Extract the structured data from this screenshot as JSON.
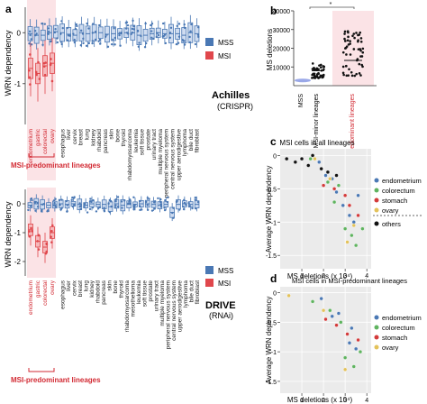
{
  "colors": {
    "mss": "#4a78b4",
    "msi": "#e0474c",
    "msi_bg": "#fbe3e6",
    "panel_bg": "#ebebeb",
    "red_text": "#d22a33",
    "black": "#111111",
    "mss_violin": "#9aa8e8"
  },
  "panel_letters": [
    "a",
    "b",
    "c",
    "d"
  ],
  "panel_a": {
    "ylabel": "WRN dependency",
    "yticks": [
      "0",
      "-1",
      "-2"
    ],
    "msi_group_label": "MSI-predominant lineages",
    "legend": [
      "MSS",
      "MSI"
    ],
    "tag": "Achilles",
    "tag_sub": "(CRISPR)",
    "msi_lineages": [
      "endometrium",
      "gastric",
      "colorectal",
      "ovary"
    ],
    "other_lineages": [
      "esophagus",
      "liver",
      "cervix",
      "breast",
      "lung",
      "kidney",
      "rhabdoid",
      "pancreas",
      "skin",
      "bone",
      "thyroid",
      "rhabdomyosarcoma",
      "leukemia",
      "soft tissue",
      "prostate",
      "urinary tract",
      "multiple myeloma",
      "peripheral nervous system",
      "central nervous system",
      "upper aerodigestive",
      "lymphoma",
      "bile duct",
      "fibroblast"
    ],
    "chart_data": {
      "type": "box",
      "ylim": [
        -1.8,
        0.5
      ],
      "mss_medians": [
        -0.02,
        -0.05,
        -0.05,
        0.0,
        0.02,
        0.0,
        -0.03,
        -0.05,
        0.0,
        -0.02,
        0.0,
        0.0,
        -0.03,
        -0.02,
        -0.02,
        0.0,
        0.0,
        -0.05,
        -0.05,
        -0.02,
        0.0,
        -0.02,
        -0.02,
        -0.02,
        -0.05,
        0.0,
        -0.02
      ],
      "msi_medians": [
        -0.7,
        -0.8,
        -0.65,
        -0.6
      ]
    }
  },
  "panel_b": {
    "ylabel": "MS deletions",
    "yticks": [
      "40000",
      "30000",
      "20000",
      "10000",
      "0"
    ],
    "xticklabels": [
      "MSS",
      "MSI-minor lineages",
      "MSI-predominant lineages"
    ],
    "sig": "*",
    "chart_data": {
      "type": "violin",
      "ylim": [
        0,
        40000
      ],
      "categories": [
        "MSS",
        "MSI-minor lineages",
        "MSI-predominant lineages"
      ],
      "approx_medians": [
        2800,
        8000,
        13500
      ],
      "approx_max": [
        3500,
        17000,
        30000
      ]
    }
  },
  "panel_c": {
    "title": "MSI cells in all lineages",
    "xlabel": "MS deletions (x 10⁴)",
    "ylabel": "Average WRN dependency",
    "xticks": [
      "1",
      "2",
      "3",
      "4"
    ],
    "yticks": [
      "0",
      "-0.5",
      "-1",
      "-1.5"
    ],
    "legend": [
      "endometrium",
      "colorectum",
      "stomach",
      "ovary",
      "others"
    ],
    "chart_data": {
      "type": "scatter",
      "xlim": [
        0,
        4.2
      ],
      "ylim": [
        -1.7,
        0.1
      ],
      "series": [
        {
          "name": "endometrium",
          "points": [
            [
              1.8,
              -0.1
            ],
            [
              2.1,
              -0.3
            ],
            [
              2.4,
              -0.35
            ],
            [
              2.6,
              -0.55
            ],
            [
              3.2,
              -0.9
            ],
            [
              3.4,
              -1.0
            ],
            [
              3.6,
              -0.6
            ],
            [
              2.9,
              -0.75
            ]
          ]
        },
        {
          "name": "colorectum",
          "points": [
            [
              1.4,
              -0.05
            ],
            [
              2.2,
              -0.4
            ],
            [
              2.7,
              -0.45
            ],
            [
              3.0,
              -1.1
            ],
            [
              3.3,
              -1.2
            ],
            [
              3.5,
              -1.35
            ],
            [
              2.5,
              -0.7
            ],
            [
              3.8,
              -1.1
            ]
          ]
        },
        {
          "name": "stomach",
          "points": [
            [
              2.0,
              -0.45
            ],
            [
              2.5,
              -0.5
            ],
            [
              3.0,
              -0.6
            ],
            [
              3.2,
              -0.75
            ],
            [
              3.6,
              -0.9
            ]
          ]
        },
        {
          "name": "ovary",
          "points": [
            [
              1.6,
              -0.05
            ],
            [
              2.3,
              -0.35
            ],
            [
              3.1,
              -1.3
            ],
            [
              3.4,
              -1.05
            ]
          ]
        },
        {
          "name": "others",
          "points": [
            [
              0.3,
              -0.05
            ],
            [
              0.7,
              -0.1
            ],
            [
              1.0,
              -0.05
            ],
            [
              1.3,
              -0.15
            ],
            [
              1.5,
              0.0
            ],
            [
              1.9,
              -0.2
            ],
            [
              2.2,
              -0.25
            ],
            [
              2.6,
              -0.3
            ]
          ]
        }
      ]
    }
  },
  "panel_d": {
    "title": "MSI cells in MSI-predominant lineages",
    "xlabel": "MS deletions (x 10⁴)",
    "ylabel": "Average WRN dependency",
    "xticks": [
      "1",
      "2",
      "3",
      "4"
    ],
    "yticks": [
      "0",
      "-0.5",
      "-1",
      "-1.5"
    ],
    "legend": [
      "endometrium",
      "colorectum",
      "stomach",
      "ovary"
    ],
    "chart_data": {
      "type": "scatter",
      "xlim": [
        0,
        4.2
      ],
      "ylim": [
        -1.7,
        0.1
      ],
      "series": [
        {
          "name": "endometrium",
          "points": [
            [
              1.9,
              -0.1
            ],
            [
              2.4,
              -0.4
            ],
            [
              2.7,
              -0.35
            ],
            [
              3.2,
              -0.85
            ],
            [
              3.5,
              -0.95
            ],
            [
              3.3,
              -0.6
            ]
          ]
        },
        {
          "name": "colorectum",
          "points": [
            [
              1.5,
              -0.15
            ],
            [
              2.3,
              -0.3
            ],
            [
              2.8,
              -0.5
            ],
            [
              3.0,
              -1.1
            ],
            [
              3.4,
              -1.25
            ],
            [
              3.7,
              -1.0
            ]
          ]
        },
        {
          "name": "stomach",
          "points": [
            [
              2.1,
              -0.45
            ],
            [
              2.6,
              -0.55
            ],
            [
              3.1,
              -0.7
            ],
            [
              3.6,
              -0.8
            ]
          ]
        },
        {
          "name": "ovary",
          "points": [
            [
              0.4,
              -0.05
            ],
            [
              2.0,
              -0.3
            ],
            [
              3.0,
              -1.3
            ]
          ]
        }
      ]
    }
  },
  "panel_drive": {
    "ylabel": "WRN dependency",
    "yticks": [
      "0",
      "-1",
      "-2"
    ],
    "msi_group_label": "MSI-predominant lineages",
    "legend": [
      "MSS",
      "MSI"
    ],
    "tag": "DRIVE",
    "tag_sub": "(RNAi)",
    "msi_lineages": [
      "endometrium",
      "gastric",
      "colorectal",
      "ovary"
    ],
    "other_lineages": [
      "esophagus",
      "liver",
      "cervix",
      "breast",
      "lung",
      "kidney",
      "rhabdoid",
      "pancreas",
      "skin",
      "bone",
      "thyroid",
      "rhabdomyosarcoma",
      "mesothelioma",
      "leukemia",
      "soft tissue",
      "prostate",
      "urinary tract",
      "multiple myeloma",
      "peripheral nervous system",
      "central nervous system",
      "upper aerodigestive",
      "lymphoma",
      "bile duct",
      "fibroblast"
    ],
    "chart_data": {
      "type": "box",
      "ylim": [
        -2.5,
        0.5
      ],
      "mss_medians": [
        -0.05,
        0.0,
        -0.02,
        -0.05,
        -0.03,
        0.0,
        -0.02,
        0.0,
        -0.02,
        -0.05,
        0.0,
        -0.02,
        -0.02,
        -0.1,
        0.0,
        -0.05,
        -0.02,
        -0.02,
        0.0,
        0.0,
        -0.02,
        -0.05,
        -0.02,
        -0.3,
        -0.02,
        0.0,
        -0.02,
        -0.02
      ],
      "msi_medians": [
        -0.9,
        -1.3,
        -1.5,
        -1.0
      ]
    }
  }
}
